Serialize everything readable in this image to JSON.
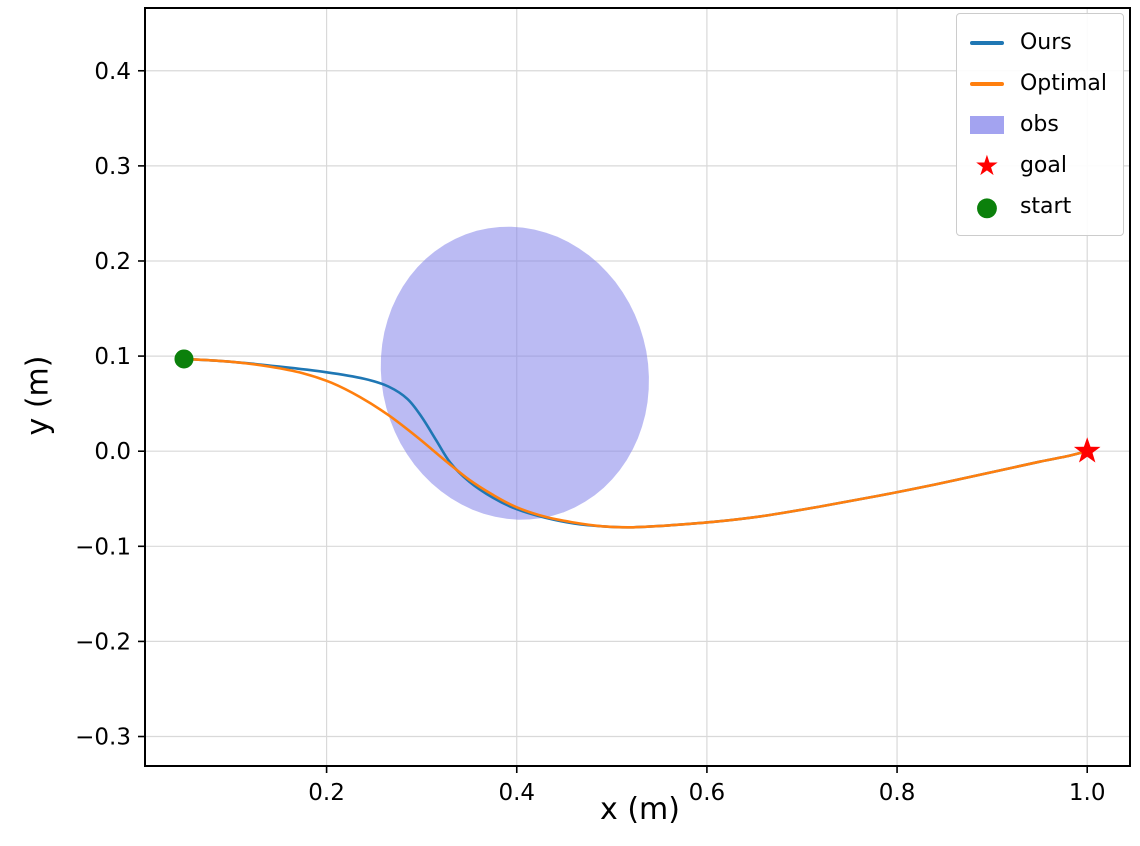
{
  "figure": {
    "background": "#ffffff",
    "frame_color": "#000000",
    "grid_color": "#d9d9d9"
  },
  "chart_data": {
    "type": "line",
    "title": "",
    "xlabel": "x (m)",
    "ylabel": "y (m)",
    "xlim": [
      0.009,
      1.045
    ],
    "ylim": [
      -0.331,
      0.466
    ],
    "xticks": [
      0.2,
      0.4,
      0.6,
      0.8,
      1.0
    ],
    "yticks": [
      -0.3,
      -0.2,
      -0.1,
      0.0,
      0.1,
      0.2,
      0.3,
      0.4
    ],
    "grid": true,
    "series": [
      {
        "name": "Ours",
        "color": "#1f77b4",
        "points": [
          [
            0.05,
            0.097
          ],
          [
            0.1,
            0.094
          ],
          [
            0.15,
            0.089
          ],
          [
            0.2,
            0.083
          ],
          [
            0.24,
            0.076
          ],
          [
            0.265,
            0.068
          ],
          [
            0.285,
            0.055
          ],
          [
            0.3,
            0.036
          ],
          [
            0.315,
            0.012
          ],
          [
            0.33,
            -0.012
          ],
          [
            0.35,
            -0.032
          ],
          [
            0.375,
            -0.049
          ],
          [
            0.4,
            -0.061
          ],
          [
            0.43,
            -0.07
          ],
          [
            0.46,
            -0.076
          ],
          [
            0.49,
            -0.079
          ],
          [
            0.52,
            -0.08
          ],
          [
            0.56,
            -0.078
          ],
          [
            0.61,
            -0.074
          ],
          [
            0.66,
            -0.068
          ],
          [
            0.72,
            -0.058
          ],
          [
            0.78,
            -0.047
          ],
          [
            0.84,
            -0.035
          ],
          [
            0.9,
            -0.022
          ],
          [
            0.95,
            -0.011
          ],
          [
            0.98,
            -0.005
          ],
          [
            1.0,
            0.0
          ]
        ]
      },
      {
        "name": "Optimal",
        "color": "#ff7f0e",
        "points": [
          [
            0.05,
            0.097
          ],
          [
            0.1,
            0.094
          ],
          [
            0.14,
            0.089
          ],
          [
            0.175,
            0.082
          ],
          [
            0.205,
            0.072
          ],
          [
            0.235,
            0.057
          ],
          [
            0.265,
            0.038
          ],
          [
            0.295,
            0.015
          ],
          [
            0.325,
            -0.01
          ],
          [
            0.35,
            -0.03
          ],
          [
            0.375,
            -0.046
          ],
          [
            0.4,
            -0.059
          ],
          [
            0.43,
            -0.069
          ],
          [
            0.46,
            -0.075
          ],
          [
            0.49,
            -0.079
          ],
          [
            0.52,
            -0.08
          ],
          [
            0.56,
            -0.078
          ],
          [
            0.61,
            -0.074
          ],
          [
            0.66,
            -0.068
          ],
          [
            0.72,
            -0.058
          ],
          [
            0.78,
            -0.047
          ],
          [
            0.84,
            -0.035
          ],
          [
            0.9,
            -0.022
          ],
          [
            0.95,
            -0.011
          ],
          [
            0.98,
            -0.005
          ],
          [
            1.0,
            0.0
          ]
        ]
      }
    ],
    "obstacle": {
      "label": "obs",
      "shape": "ellipse",
      "center": [
        0.398,
        0.082
      ],
      "rx": 0.14,
      "ry": 0.155,
      "rotation_deg": 15,
      "color": "#8484ea",
      "opacity": 0.55
    },
    "markers": [
      {
        "name": "goal",
        "shape": "star",
        "x": 1.0,
        "y": 0.0,
        "color": "#ff0000"
      },
      {
        "name": "start",
        "shape": "circle",
        "x": 0.05,
        "y": 0.097,
        "color": "#0b800b"
      }
    ],
    "legend": {
      "position": "upper-right",
      "entries": [
        {
          "label": "Ours",
          "swatch": "line",
          "color": "#1f77b4",
          "icon": "line-sample-icon"
        },
        {
          "label": "Optimal",
          "swatch": "line",
          "color": "#ff7f0e",
          "icon": "line-sample-icon"
        },
        {
          "label": "obs",
          "swatch": "patch",
          "color": "#a3a3f0",
          "icon": "patch-icon"
        },
        {
          "label": "goal",
          "swatch": "star",
          "color": "#ff0000",
          "icon": "star-icon"
        },
        {
          "label": "start",
          "swatch": "circle",
          "color": "#0b800b",
          "icon": "circle-icon"
        }
      ]
    }
  }
}
